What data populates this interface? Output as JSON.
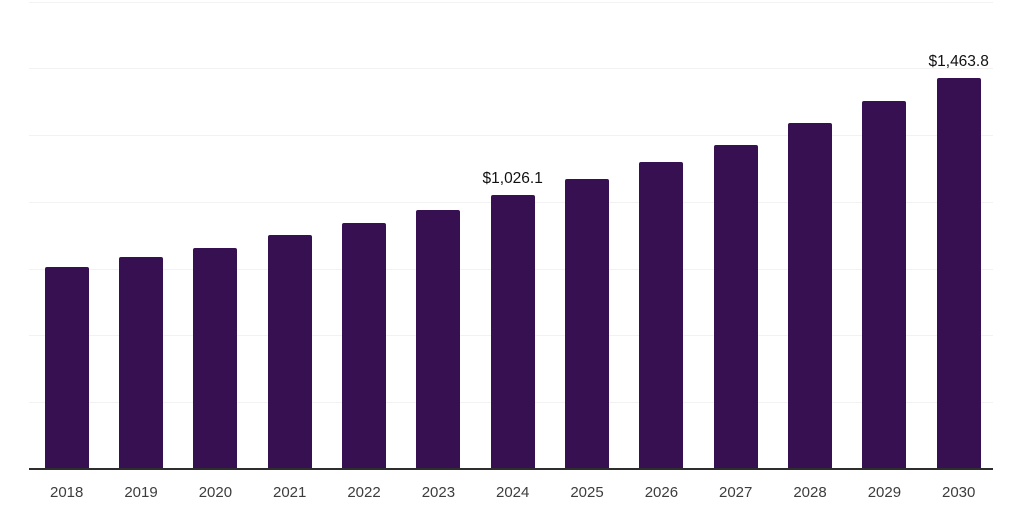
{
  "colors": {
    "background": "#ffffff",
    "bar": "#361050",
    "gridline": "#f2f2f2",
    "axis_line": "#2e2e2e",
    "tick_label": "#3d3d3d",
    "data_label": "#111111"
  },
  "chart_data": {
    "type": "bar",
    "title": "",
    "xlabel": "",
    "ylabel": "",
    "categories": [
      "2018",
      "2019",
      "2020",
      "2021",
      "2022",
      "2023",
      "2024",
      "2025",
      "2026",
      "2027",
      "2028",
      "2029",
      "2030"
    ],
    "values": [
      757,
      792,
      829,
      875,
      921,
      969,
      1026.1,
      1084,
      1148,
      1214,
      1295,
      1378,
      1463.8
    ],
    "data_labels": [
      {
        "index": 6,
        "text": "$1,026.1"
      },
      {
        "index": 12,
        "text": "$1,463.8"
      }
    ],
    "ylim": [
      0,
      1750
    ],
    "gridline_step": 250,
    "grid": "horizontal-only",
    "legend": "none",
    "y_axis_labels_visible": false
  }
}
